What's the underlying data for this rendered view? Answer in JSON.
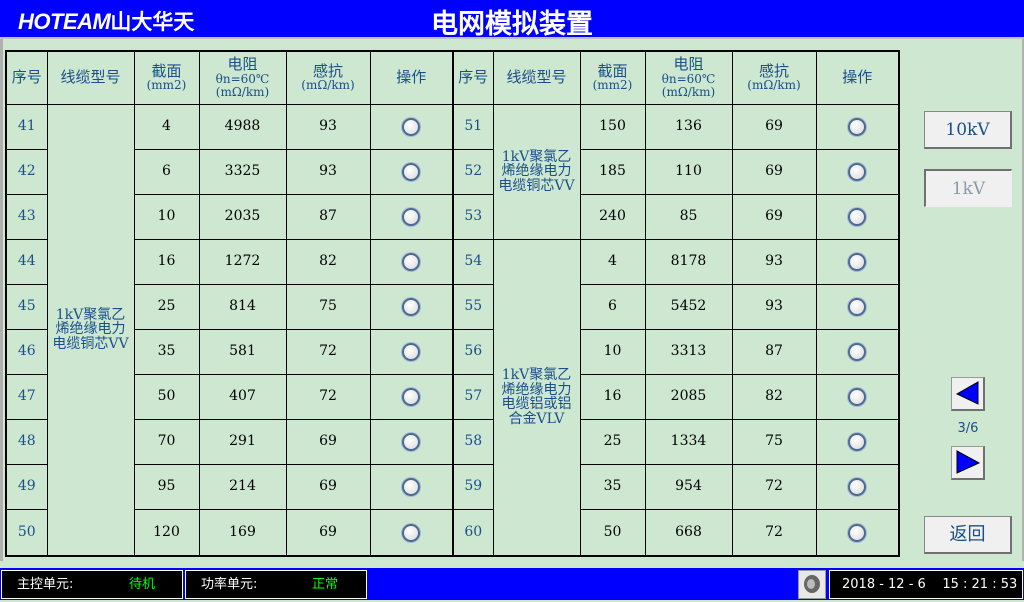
{
  "header": {
    "logo_latin": "HOTEAM",
    "logo_cn": "山大华天",
    "title": "电网模拟装置"
  },
  "table": {
    "headers": {
      "seq": "序号",
      "model": "线缆型号",
      "section": "截面",
      "section_unit": "(mm2)",
      "resistance": "电阻",
      "resistance_cond": "θn=60℃",
      "resistance_unit": "(mΩ/km)",
      "reactance": "感抗",
      "reactance_unit": "(mΩ/km)",
      "action": "操作"
    },
    "left": {
      "groups": [
        {
          "model": "1kV聚氯乙烯绝缘电力电缆铜芯VV",
          "span": 10
        }
      ],
      "rows": [
        {
          "seq": "41",
          "section": "4",
          "resistance": "4988",
          "reactance": "93"
        },
        {
          "seq": "42",
          "section": "6",
          "resistance": "3325",
          "reactance": "93"
        },
        {
          "seq": "43",
          "section": "10",
          "resistance": "2035",
          "reactance": "87"
        },
        {
          "seq": "44",
          "section": "16",
          "resistance": "1272",
          "reactance": "82"
        },
        {
          "seq": "45",
          "section": "25",
          "resistance": "814",
          "reactance": "75"
        },
        {
          "seq": "46",
          "section": "35",
          "resistance": "581",
          "reactance": "72"
        },
        {
          "seq": "47",
          "section": "50",
          "resistance": "407",
          "reactance": "72"
        },
        {
          "seq": "48",
          "section": "70",
          "resistance": "291",
          "reactance": "69"
        },
        {
          "seq": "49",
          "section": "95",
          "resistance": "214",
          "reactance": "69"
        },
        {
          "seq": "50",
          "section": "120",
          "resistance": "169",
          "reactance": "69"
        }
      ]
    },
    "right": {
      "groups": [
        {
          "model": "1kV聚氯乙烯绝缘电力电缆铜芯VV",
          "span": 3
        },
        {
          "model": "1kV聚氯乙烯绝缘电力电缆铝或铝合金VLV",
          "span": 7
        }
      ],
      "rows": [
        {
          "seq": "51",
          "section": "150",
          "resistance": "136",
          "reactance": "69"
        },
        {
          "seq": "52",
          "section": "185",
          "resistance": "110",
          "reactance": "69"
        },
        {
          "seq": "53",
          "section": "240",
          "resistance": "85",
          "reactance": "69"
        },
        {
          "seq": "54",
          "section": "4",
          "resistance": "8178",
          "reactance": "93"
        },
        {
          "seq": "55",
          "section": "6",
          "resistance": "5452",
          "reactance": "93"
        },
        {
          "seq": "56",
          "section": "10",
          "resistance": "3313",
          "reactance": "87"
        },
        {
          "seq": "57",
          "section": "16",
          "resistance": "2085",
          "reactance": "82"
        },
        {
          "seq": "58",
          "section": "25",
          "resistance": "1334",
          "reactance": "75"
        },
        {
          "seq": "59",
          "section": "35",
          "resistance": "954",
          "reactance": "72"
        },
        {
          "seq": "60",
          "section": "50",
          "resistance": "668",
          "reactance": "72"
        }
      ]
    }
  },
  "side": {
    "btn_10kv": "10kV",
    "btn_1kv": "1kV",
    "btn_1kv_active": true,
    "page": "3/6",
    "back": "返回"
  },
  "status": {
    "main_label": "主控单元:",
    "main_value": "待机",
    "power_label": "功率单元:",
    "power_value": "正常",
    "datetime": "2018 - 12 - 6    15 : 21 : 53"
  },
  "colors": {
    "accent": "#0000ff",
    "background": "#cde7d0",
    "status_ok": "#00ff00"
  }
}
